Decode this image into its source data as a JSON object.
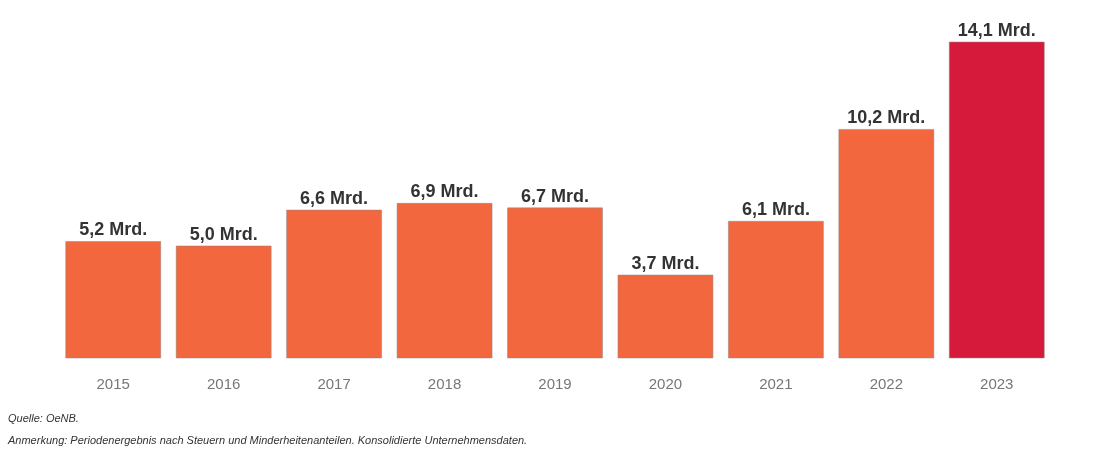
{
  "chart_data": {
    "type": "bar",
    "categories": [
      "2015",
      "2016",
      "2017",
      "2018",
      "2019",
      "2020",
      "2021",
      "2022",
      "2023"
    ],
    "values": [
      5.2,
      5.0,
      6.6,
      6.9,
      6.7,
      3.7,
      6.1,
      10.2,
      14.1
    ],
    "value_labels": [
      "5,2 Mrd.",
      "5,0 Mrd.",
      "6,6 Mrd.",
      "6,9 Mrd.",
      "6,7 Mrd.",
      "3,7 Mrd.",
      "6,1 Mrd.",
      "10,2 Mrd.",
      "14,1 Mrd."
    ],
    "colors": [
      "#f3673f",
      "#f3673f",
      "#f3673f",
      "#f3673f",
      "#f3673f",
      "#f3673f",
      "#f3673f",
      "#f3673f",
      "#d61a3c"
    ],
    "annotations": [
      "Quelle: OeNB.",
      "Anmerkung: Periodenergebnis nach Steuern und Minderheitenanteilen. Konsolidierte Unternehmensdaten."
    ],
    "grid": false,
    "legend": false
  }
}
